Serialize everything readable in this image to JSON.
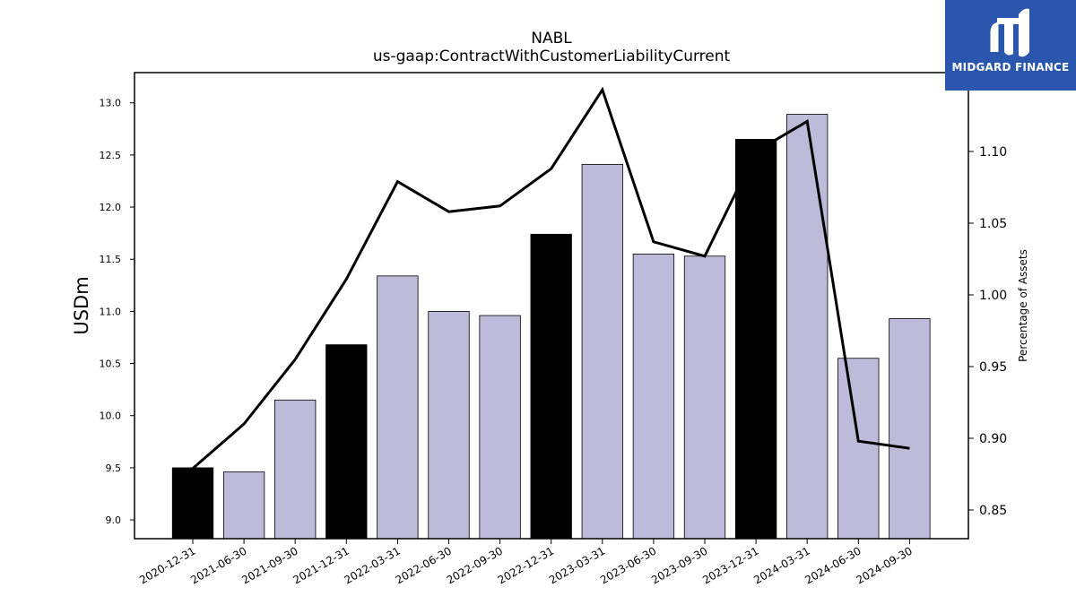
{
  "chart_data": {
    "type": "bar",
    "title": "NABL",
    "subtitle": "us-gaap:ContractWithCustomerLiabilityCurrent",
    "ylabel": "USDm",
    "y2label": "Percentage of Assets",
    "categories": [
      "2020-12-31",
      "2021-06-30",
      "2021-09-30",
      "2021-12-31",
      "2022-03-31",
      "2022-06-30",
      "2022-09-30",
      "2022-12-31",
      "2023-03-31",
      "2023-06-30",
      "2023-09-30",
      "2023-12-31",
      "2024-03-31",
      "2024-06-30",
      "2024-09-30"
    ],
    "series": [
      {
        "type": "bar",
        "axis": "left",
        "values": [
          9.5,
          9.46,
          10.15,
          10.68,
          11.34,
          11.0,
          10.96,
          11.74,
          12.41,
          11.55,
          11.53,
          12.65,
          12.89,
          10.55,
          10.93
        ],
        "colors": [
          "#000000",
          "#bdbbd9",
          "#bdbbd9",
          "#000000",
          "#bdbbd9",
          "#bdbbd9",
          "#bdbbd9",
          "#000000",
          "#bdbbd9",
          "#bdbbd9",
          "#bdbbd9",
          "#000000",
          "#bdbbd9",
          "#bdbbd9",
          "#bdbbd9"
        ]
      },
      {
        "type": "line",
        "axis": "right",
        "values": [
          0.879,
          0.91,
          0.955,
          1.011,
          1.079,
          1.058,
          1.062,
          1.088,
          1.143,
          1.037,
          1.027,
          1.1,
          1.121,
          0.898,
          0.893
        ],
        "color": "#000000"
      }
    ],
    "ylim": [
      8.82,
      13.29
    ],
    "y2lim": [
      0.83,
      1.155
    ],
    "yticks": [
      9.0,
      9.5,
      10.0,
      10.5,
      11.0,
      11.5,
      12.0,
      12.5,
      13.0
    ],
    "y2ticks": [
      0.85,
      0.9,
      0.95,
      1.0,
      1.05,
      1.1
    ],
    "grid": false
  },
  "logo": {
    "text": "MIDGARD FINANCE",
    "color": "#2a56ad"
  }
}
